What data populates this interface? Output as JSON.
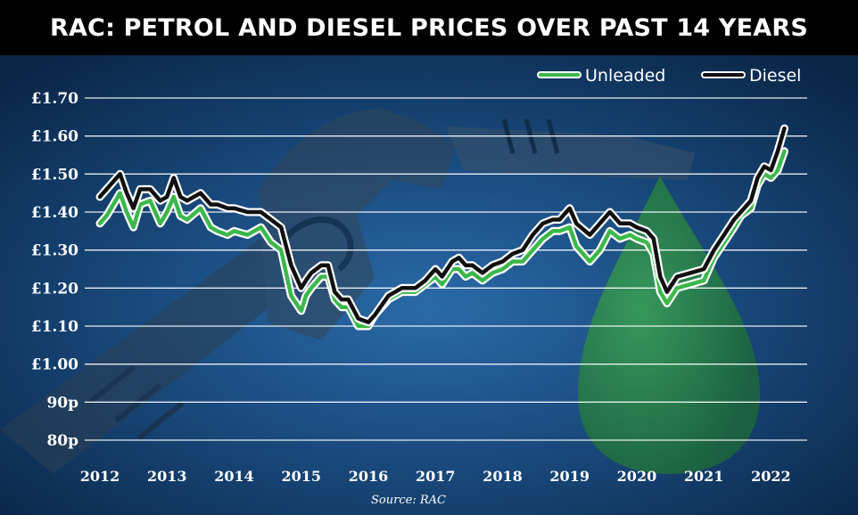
{
  "title": "RAC: PETROL AND DIESEL PRICES OVER PAST 14 YEARS",
  "colors": {
    "background": "#0b2a52",
    "title_bar": "#000000",
    "unleaded": "#3cb84a",
    "diesel": "#111111",
    "outline": "#ffffff",
    "grid": "#ffffff"
  },
  "chart_data": {
    "type": "line",
    "title": "RAC: PETROL AND DIESEL PRICES OVER PAST 14 YEARS",
    "xlabel": "",
    "ylabel": "",
    "source": "Source: RAC",
    "x_ticks": [
      "2012",
      "2013",
      "2014",
      "2015",
      "2016",
      "2017",
      "2018",
      "2019",
      "2020",
      "2021",
      "2022"
    ],
    "xlim": [
      2012,
      2022.3
    ],
    "ylim": [
      0.8,
      1.7
    ],
    "y_ticks": [
      0.8,
      0.9,
      1.0,
      1.1,
      1.2,
      1.3,
      1.4,
      1.5,
      1.6,
      1.7
    ],
    "y_tick_labels": [
      "80p",
      "90p",
      "£1.00",
      "£1.10",
      "£1.20",
      "£1.30",
      "£1.40",
      "£1.50",
      "£1.60",
      "£1.70"
    ],
    "grid": true,
    "legend_position": "top-right",
    "series": [
      {
        "name": "Unleaded",
        "color": "#3cb84a",
        "x": [
          2012.0,
          2012.1,
          2012.3,
          2012.4,
          2012.5,
          2012.6,
          2012.75,
          2012.9,
          2013.0,
          2013.1,
          2013.2,
          2013.3,
          2013.5,
          2013.65,
          2013.75,
          2013.9,
          2014.0,
          2014.2,
          2014.4,
          2014.55,
          2014.7,
          2014.85,
          2015.0,
          2015.07,
          2015.15,
          2015.3,
          2015.4,
          2015.5,
          2015.6,
          2015.7,
          2015.85,
          2016.0,
          2016.1,
          2016.3,
          2016.5,
          2016.7,
          2016.85,
          2017.0,
          2017.1,
          2017.25,
          2017.35,
          2017.45,
          2017.55,
          2017.7,
          2017.85,
          2018.0,
          2018.15,
          2018.3,
          2018.45,
          2018.6,
          2018.75,
          2018.85,
          2019.0,
          2019.1,
          2019.3,
          2019.45,
          2019.6,
          2019.75,
          2019.9,
          2020.0,
          2020.15,
          2020.25,
          2020.35,
          2020.45,
          2020.6,
          2020.8,
          2021.0,
          2021.15,
          2021.3,
          2021.45,
          2021.55,
          2021.7,
          2021.8,
          2021.9,
          2022.0,
          2022.1,
          2022.2
        ],
        "values": [
          1.37,
          1.39,
          1.45,
          1.4,
          1.36,
          1.42,
          1.43,
          1.37,
          1.4,
          1.44,
          1.39,
          1.38,
          1.41,
          1.36,
          1.35,
          1.34,
          1.35,
          1.34,
          1.36,
          1.32,
          1.3,
          1.18,
          1.14,
          1.18,
          1.2,
          1.23,
          1.23,
          1.17,
          1.15,
          1.15,
          1.1,
          1.1,
          1.13,
          1.17,
          1.19,
          1.19,
          1.21,
          1.23,
          1.21,
          1.25,
          1.25,
          1.23,
          1.24,
          1.22,
          1.24,
          1.25,
          1.27,
          1.27,
          1.3,
          1.33,
          1.35,
          1.35,
          1.36,
          1.31,
          1.27,
          1.3,
          1.35,
          1.33,
          1.34,
          1.33,
          1.32,
          1.29,
          1.19,
          1.16,
          1.2,
          1.21,
          1.22,
          1.28,
          1.32,
          1.36,
          1.39,
          1.41,
          1.47,
          1.5,
          1.49,
          1.51,
          1.56
        ]
      },
      {
        "name": "Diesel",
        "color": "#111111",
        "x": [
          2012.0,
          2012.1,
          2012.3,
          2012.4,
          2012.5,
          2012.6,
          2012.75,
          2012.9,
          2013.0,
          2013.1,
          2013.2,
          2013.3,
          2013.5,
          2013.65,
          2013.75,
          2013.9,
          2014.0,
          2014.2,
          2014.4,
          2014.55,
          2014.7,
          2014.85,
          2015.0,
          2015.07,
          2015.15,
          2015.3,
          2015.4,
          2015.5,
          2015.6,
          2015.7,
          2015.85,
          2016.0,
          2016.1,
          2016.3,
          2016.5,
          2016.7,
          2016.85,
          2017.0,
          2017.1,
          2017.25,
          2017.35,
          2017.45,
          2017.55,
          2017.7,
          2017.85,
          2018.0,
          2018.15,
          2018.3,
          2018.45,
          2018.6,
          2018.75,
          2018.85,
          2019.0,
          2019.1,
          2019.3,
          2019.45,
          2019.6,
          2019.75,
          2019.9,
          2020.0,
          2020.15,
          2020.25,
          2020.35,
          2020.45,
          2020.6,
          2020.8,
          2021.0,
          2021.15,
          2021.3,
          2021.45,
          2021.55,
          2021.7,
          2021.8,
          2021.9,
          2022.0,
          2022.1,
          2022.2
        ],
        "values": [
          1.44,
          1.46,
          1.5,
          1.45,
          1.41,
          1.46,
          1.46,
          1.43,
          1.44,
          1.49,
          1.44,
          1.43,
          1.45,
          1.42,
          1.42,
          1.41,
          1.41,
          1.4,
          1.4,
          1.38,
          1.36,
          1.26,
          1.2,
          1.22,
          1.24,
          1.26,
          1.26,
          1.19,
          1.17,
          1.17,
          1.12,
          1.11,
          1.13,
          1.18,
          1.2,
          1.2,
          1.22,
          1.25,
          1.23,
          1.27,
          1.28,
          1.26,
          1.26,
          1.24,
          1.26,
          1.27,
          1.29,
          1.3,
          1.34,
          1.37,
          1.38,
          1.38,
          1.41,
          1.37,
          1.34,
          1.37,
          1.4,
          1.37,
          1.37,
          1.36,
          1.35,
          1.33,
          1.23,
          1.19,
          1.23,
          1.24,
          1.25,
          1.3,
          1.34,
          1.38,
          1.4,
          1.43,
          1.49,
          1.52,
          1.51,
          1.56,
          1.62
        ]
      }
    ]
  }
}
